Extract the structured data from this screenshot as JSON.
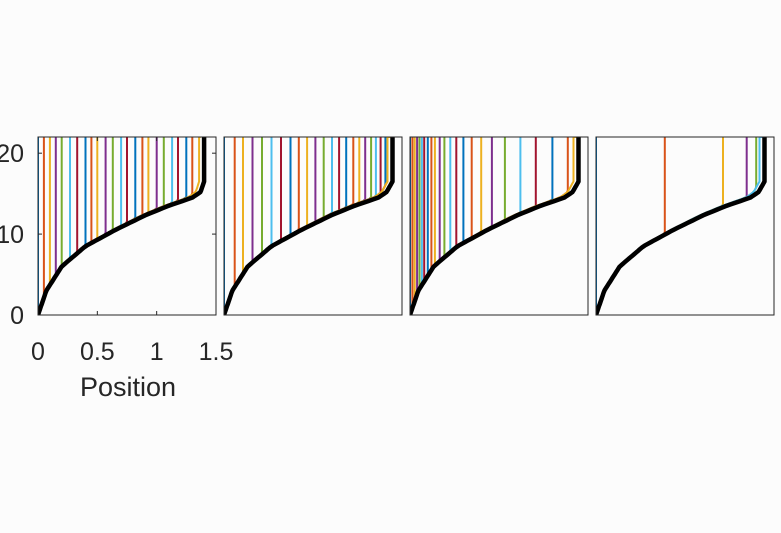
{
  "chart_data": [
    {
      "type": "line",
      "xlabel": "Position",
      "ylabel": "",
      "xlim": [
        0,
        1.5
      ],
      "ylim": [
        0,
        22
      ],
      "xticks": [
        "0",
        "0.5",
        "1",
        "1.5"
      ],
      "yticks": [
        "0",
        "10",
        "20"
      ],
      "grid": false,
      "legend": "none",
      "series_count": 24,
      "series_final_x": [
        0.0,
        0.05,
        0.1,
        0.15,
        0.2,
        0.27,
        0.33,
        0.4,
        0.45,
        0.5,
        0.57,
        0.63,
        0.7,
        0.75,
        0.82,
        0.88,
        0.93,
        1.0,
        1.06,
        1.13,
        1.18,
        1.25,
        1.3,
        1.37
      ],
      "envelope_x": [
        0.0,
        0.07,
        0.2,
        0.4,
        0.65,
        0.9,
        1.1,
        1.3,
        1.37,
        1.4,
        1.4
      ],
      "envelope_y": [
        0,
        3,
        6,
        8.5,
        10.5,
        12.3,
        13.5,
        14.5,
        15.2,
        16.5,
        22
      ]
    },
    {
      "type": "line",
      "xlim": [
        0,
        1.5
      ],
      "ylim": [
        0,
        22
      ],
      "grid": false,
      "legend": "none",
      "series_count": 24,
      "series_final_x": [
        0.0,
        0.09,
        0.16,
        0.24,
        0.32,
        0.4,
        0.48,
        0.56,
        0.63,
        0.7,
        0.77,
        0.84,
        0.91,
        0.97,
        1.03,
        1.09,
        1.14,
        1.19,
        1.24,
        1.28,
        1.32,
        1.36,
        1.4,
        1.42
      ],
      "envelope_x": [
        0.0,
        0.07,
        0.2,
        0.4,
        0.65,
        0.9,
        1.1,
        1.3,
        1.37,
        1.42,
        1.42
      ],
      "envelope_y": [
        0,
        3,
        6,
        8.5,
        10.5,
        12.3,
        13.5,
        14.5,
        15.2,
        16.5,
        22
      ]
    },
    {
      "type": "line",
      "xlim": [
        0,
        1.5
      ],
      "ylim": [
        0,
        22
      ],
      "grid": false,
      "legend": "none",
      "series_count": 24,
      "series_final_x": [
        0.0,
        0.02,
        0.04,
        0.06,
        0.08,
        0.1,
        0.12,
        0.15,
        0.18,
        0.21,
        0.25,
        0.29,
        0.34,
        0.39,
        0.45,
        0.52,
        0.6,
        0.69,
        0.8,
        0.93,
        1.06,
        1.2,
        1.33,
        1.42
      ],
      "envelope_x": [
        0.0,
        0.07,
        0.2,
        0.4,
        0.65,
        0.9,
        1.1,
        1.3,
        1.37,
        1.42,
        1.42
      ],
      "envelope_y": [
        0,
        3,
        6,
        8.5,
        10.5,
        12.3,
        13.5,
        14.5,
        15.2,
        16.5,
        22
      ]
    },
    {
      "type": "line",
      "xlim": [
        0,
        1.5
      ],
      "ylim": [
        0,
        22
      ],
      "grid": false,
      "legend": "none",
      "series_count": 6,
      "series_final_x": [
        0.0,
        0.58,
        1.07,
        1.27,
        1.35,
        1.42
      ],
      "envelope_x": [
        0.0,
        0.07,
        0.2,
        0.4,
        0.65,
        0.9,
        1.1,
        1.3,
        1.37,
        1.42,
        1.42
      ],
      "envelope_y": [
        0,
        3,
        6,
        8.5,
        10.5,
        12.3,
        13.5,
        14.5,
        15.2,
        16.5,
        22
      ]
    }
  ],
  "colors": {
    "series_cycle": [
      "#0072bd",
      "#d95319",
      "#edb120",
      "#7e2f8e",
      "#77ac30",
      "#4dbeee",
      "#a2142f"
    ],
    "envelope": "#000000",
    "axes": "#262626"
  }
}
